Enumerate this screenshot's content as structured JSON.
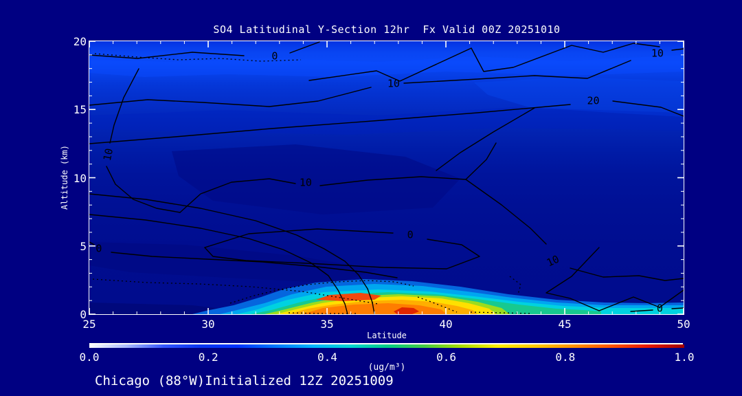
{
  "window": {
    "background": "#000082",
    "text_color": "#ffffff"
  },
  "chart_data": {
    "type": "heatmap",
    "title": "SO4 Latitudinal Y-Section 12hr  Fx Valid 00Z 20251010",
    "footer": "Chicago (88°W)Initialized 12Z 20251009",
    "xlabel": "Latitude",
    "ylabel": "Altitude (km)",
    "xlim": [
      25,
      50
    ],
    "ylim": [
      0,
      20
    ],
    "x_ticks": [
      "25",
      "30",
      "35",
      "40",
      "45",
      "50"
    ],
    "y_ticks_top_to_bottom": [
      "20",
      "15",
      "10",
      "5",
      "0"
    ],
    "grid": "off",
    "colorbar": {
      "range": [
        0.0,
        1.0
      ],
      "ticks": [
        "0.0",
        "0.2",
        "0.4",
        "0.6",
        "0.8",
        "1.0"
      ],
      "units": "(ug/m³)",
      "gradient": [
        "#ffffff",
        "#aabbff",
        "#3355ff",
        "#0836f0",
        "#0033ff",
        "#0077ff",
        "#00b4ff",
        "#00d4d4",
        "#00cc88",
        "#44cc44",
        "#aadd00",
        "#ffee00",
        "#ffc800",
        "#ff9100",
        "#ff5500",
        "#e81800",
        "#a00000"
      ]
    },
    "overlay_contours": {
      "style": "black solid lines with dotted segments",
      "labeled_values": [
        0,
        10,
        20
      ],
      "labels": [
        {
          "text": "0",
          "lat": 32.8,
          "alt": 18.9
        },
        {
          "text": "10",
          "lat": 37.8,
          "alt": 16.9
        },
        {
          "text": "10",
          "lat": 48.9,
          "alt": 19.1
        },
        {
          "text": "20",
          "lat": 46.2,
          "alt": 15.6
        },
        {
          "text": "10",
          "lat": 25.8,
          "alt": 11.7,
          "rotation_deg": -78
        },
        {
          "text": "10",
          "lat": 34.1,
          "alt": 9.6
        },
        {
          "text": "0",
          "lat": 38.5,
          "alt": 5.8
        },
        {
          "text": "0",
          "lat": 25.4,
          "alt": 4.8
        },
        {
          "text": "10",
          "lat": 44.5,
          "alt": 3.9,
          "rotation_deg": -25
        },
        {
          "text": "0",
          "lat": 49.0,
          "alt": 0.4
        }
      ]
    },
    "grid_estimate": {
      "comment": "SO4 concentration (ug/m3) estimated from fill colors vs colorbar",
      "latitudes": [
        25,
        27.5,
        30,
        32.5,
        35,
        37.5,
        40,
        42.5,
        45,
        47.5,
        50
      ],
      "altitudes_km": [
        0,
        1,
        2,
        4,
        8,
        12,
        16,
        20
      ],
      "so4_ug_m3": [
        [
          0.05,
          0.06,
          0.08,
          0.35,
          0.8,
          0.95,
          0.65,
          0.45,
          0.4,
          0.35,
          0.3
        ],
        [
          0.05,
          0.05,
          0.08,
          0.3,
          0.75,
          0.7,
          0.5,
          0.25,
          0.2,
          0.28,
          0.15
        ],
        [
          0.05,
          0.05,
          0.06,
          0.15,
          0.3,
          0.25,
          0.15,
          0.1,
          0.08,
          0.1,
          0.08
        ],
        [
          0.06,
          0.06,
          0.06,
          0.08,
          0.08,
          0.07,
          0.06,
          0.06,
          0.06,
          0.07,
          0.06
        ],
        [
          0.1,
          0.09,
          0.08,
          0.08,
          0.07,
          0.06,
          0.06,
          0.06,
          0.07,
          0.08,
          0.08
        ],
        [
          0.12,
          0.1,
          0.1,
          0.09,
          0.08,
          0.07,
          0.07,
          0.08,
          0.09,
          0.1,
          0.1
        ],
        [
          0.18,
          0.16,
          0.15,
          0.14,
          0.13,
          0.13,
          0.14,
          0.15,
          0.16,
          0.17,
          0.16
        ],
        [
          0.22,
          0.2,
          0.19,
          0.18,
          0.17,
          0.17,
          0.18,
          0.19,
          0.2,
          0.2,
          0.2
        ]
      ]
    }
  }
}
